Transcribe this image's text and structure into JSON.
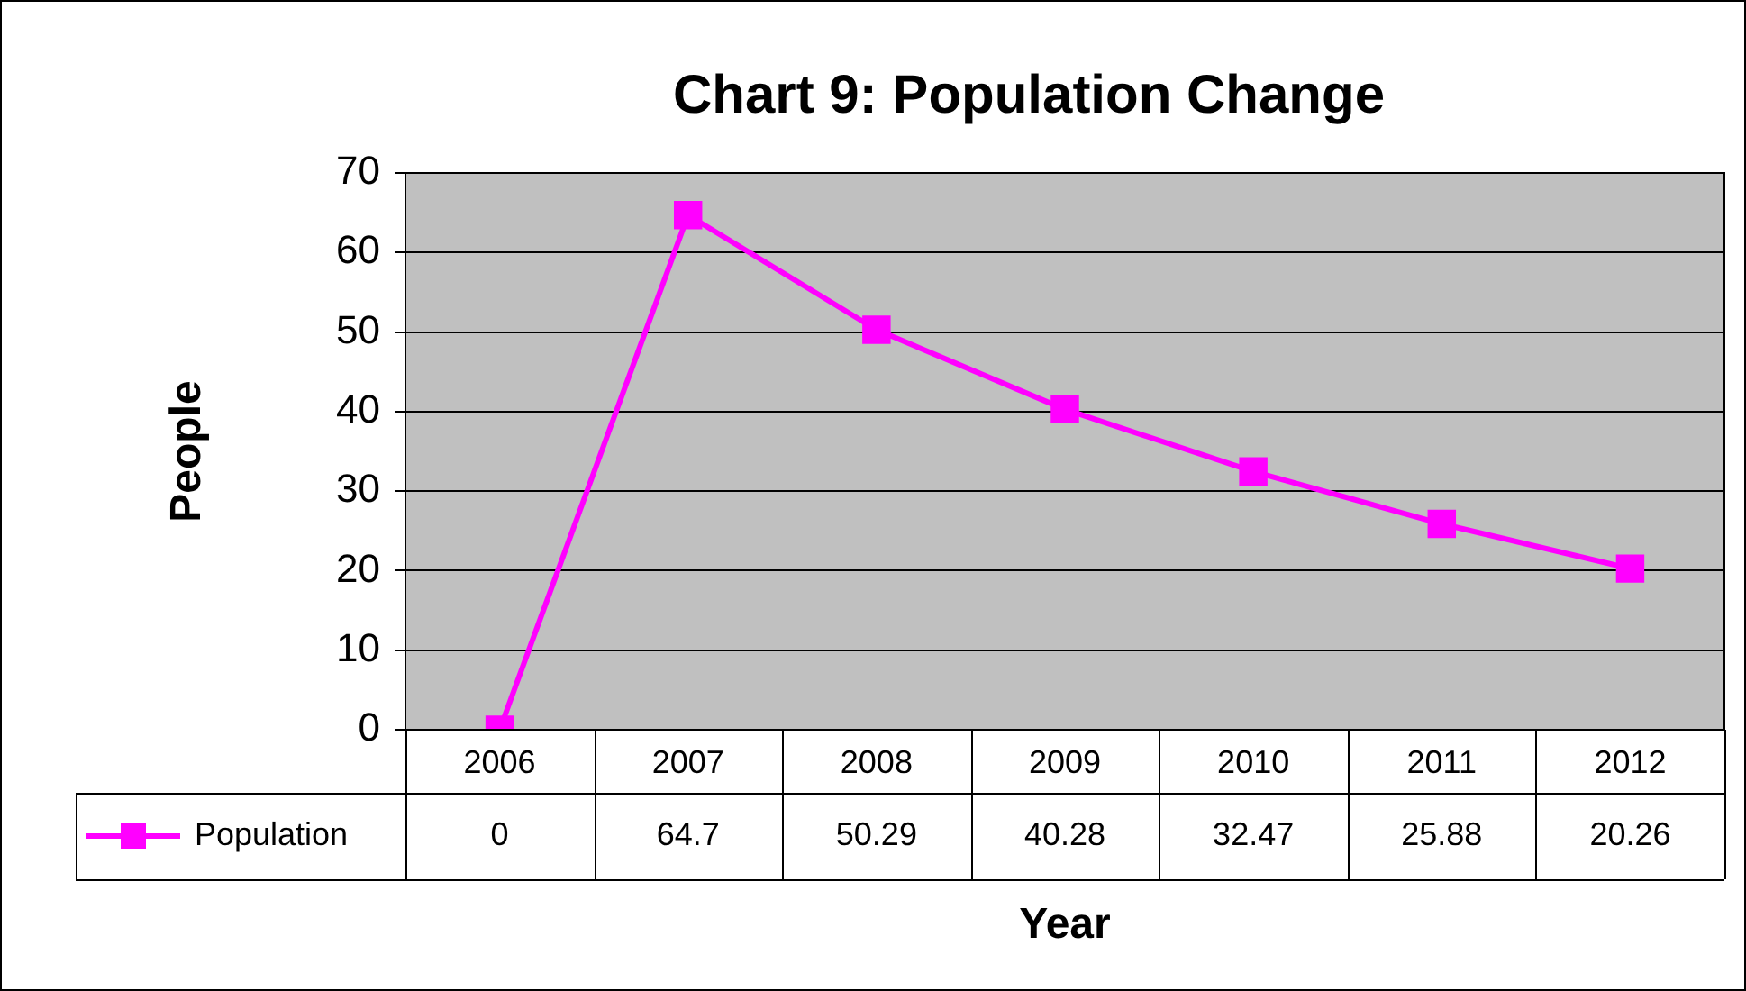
{
  "chart_data": {
    "type": "line",
    "title": "Chart 9: Population Change",
    "xlabel": "Year",
    "ylabel": "People",
    "categories": [
      "2006",
      "2007",
      "2008",
      "2009",
      "2010",
      "2011",
      "2012"
    ],
    "series": [
      {
        "name": "Population",
        "color": "#ff00ff",
        "values": [
          0,
          64.7,
          50.29,
          40.28,
          32.47,
          25.88,
          20.26
        ]
      }
    ],
    "ylim": [
      0,
      70
    ],
    "yticks": [
      0,
      10,
      20,
      30,
      40,
      50,
      60,
      70
    ],
    "grid": "y",
    "legend": "bottom",
    "marker": "square",
    "line_style": "solid",
    "data_labels": true
  }
}
